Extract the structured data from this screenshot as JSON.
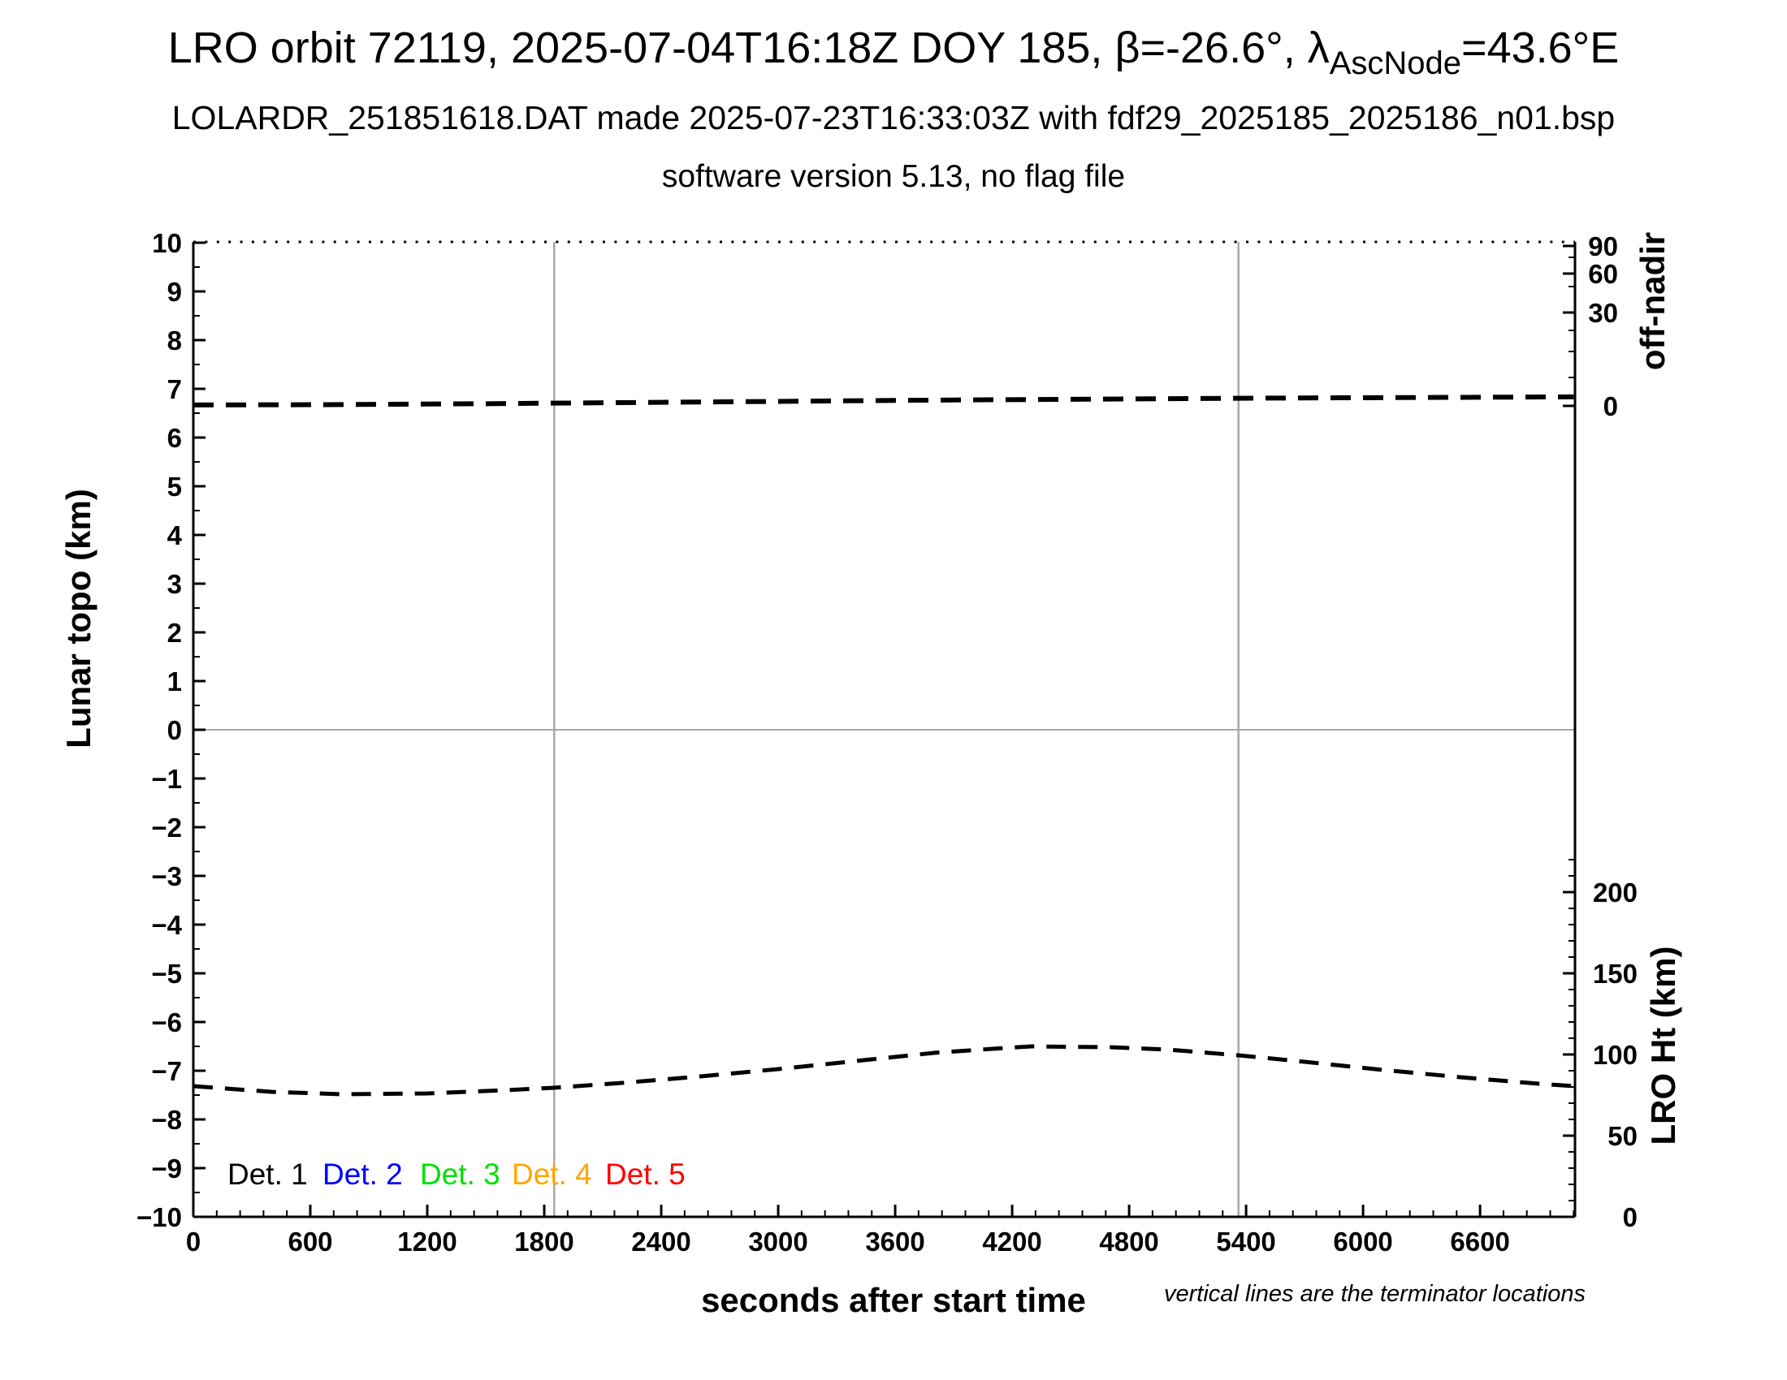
{
  "header": {
    "title_part1": "LRO orbit 72119, 2025-07-04T16:18Z DOY 185, β=-26.6°, λ",
    "title_subscript": "AscNode",
    "title_part2": "=43.6°E",
    "subtitle": "LOLARDR_251851618.DAT made 2025-07-23T16:33:03Z with fdf29_2025185_2025186_n01.bsp",
    "subtitle2": "software version 5.13, no flag file"
  },
  "axes": {
    "left": {
      "label": "Lunar topo (km)",
      "tick_labels": [
        "10",
        "9",
        "8",
        "7",
        "6",
        "5",
        "4",
        "3",
        "2",
        "1",
        "0",
        "−1",
        "−2",
        "−3",
        "−4",
        "−5",
        "−6",
        "−7",
        "−8",
        "−9",
        "−10"
      ],
      "tick_values": [
        10,
        9,
        8,
        7,
        6,
        5,
        4,
        3,
        2,
        1,
        0,
        -1,
        -2,
        -3,
        -4,
        -5,
        -6,
        -7,
        -8,
        -9,
        -10
      ],
      "range": [
        -10,
        10
      ],
      "minor_step": 0.5
    },
    "bottom": {
      "label": "seconds after start time",
      "tick_labels": [
        "0",
        "600",
        "1200",
        "1800",
        "2400",
        "3000",
        "3600",
        "4200",
        "4800",
        "5400",
        "6000",
        "6600"
      ],
      "tick_values": [
        0,
        600,
        1200,
        1800,
        2400,
        3000,
        3600,
        4200,
        4800,
        5400,
        6000,
        6600
      ],
      "range": [
        0,
        7087
      ],
      "minor_step": 120
    },
    "right_top": {
      "label": "off-nadir",
      "tick_labels": [
        "90",
        "60",
        "30",
        "0"
      ],
      "tick_values": [
        90,
        60,
        30,
        0
      ]
    },
    "right_bottom": {
      "label": "LRO Ht (km)",
      "tick_labels": [
        "200",
        "150",
        "100",
        "50",
        "0"
      ],
      "tick_values": [
        200,
        150,
        100,
        50,
        0
      ]
    }
  },
  "legend": {
    "items": [
      {
        "label": "Det. 1",
        "color": "#000000"
      },
      {
        "label": "Det. 2",
        "color": "#0000ff"
      },
      {
        "label": "Det. 3",
        "color": "#00e000"
      },
      {
        "label": "Det. 4",
        "color": "#ffa500"
      },
      {
        "label": "Det. 5",
        "color": "#ff0000"
      }
    ]
  },
  "note": "vertical lines are the terminator locations",
  "colors": {
    "curves": "#000000",
    "grid": "#a8a8a8",
    "axis": "#000000"
  },
  "chart_data": {
    "type": "line",
    "title": "LRO orbit 72119, 2025-07-04T16:18Z DOY 185, β=-26.6°, λAscNode=43.6°E",
    "xlabel": "seconds after start time",
    "ylabel_left": "Lunar topo (km)",
    "ylabel_right_top": "off-nadir",
    "ylabel_right_bottom": "LRO Ht (km)",
    "xlim": [
      0,
      7087
    ],
    "ylim_left": [
      -10,
      10
    ],
    "grid": false,
    "legend_position": "bottom-left inside",
    "terminator_lines_x_seconds": [
      1851,
      5361
    ],
    "zero_topo_gridline": 0,
    "series": [
      {
        "name": "off-nadir angle (deg), Det. 1-5 overplotted",
        "axis": "right_top",
        "style": "dashed",
        "color": "#000000",
        "x": [
          0,
          700,
          1500,
          2300,
          3100,
          3900,
          4700,
          5500,
          6300,
          7080
        ],
        "y": [
          0.3,
          0.4,
          0.7,
          1.1,
          1.5,
          1.9,
          2.2,
          2.5,
          2.7,
          2.9
        ]
      },
      {
        "name": "LRO height (km)",
        "axis": "right_bottom",
        "style": "dashed",
        "color": "#000000",
        "x": [
          0,
          400,
          770,
          1200,
          1600,
          1851,
          2200,
          2600,
          3000,
          3400,
          3800,
          4100,
          4300,
          4700,
          5000,
          5361,
          5700,
          6100,
          6500,
          6900,
          7080
        ],
        "y": [
          80.5,
          77,
          75.5,
          76,
          78,
          79.5,
          82.5,
          86.5,
          91,
          96,
          101,
          103.5,
          105,
          104.5,
          103,
          99.5,
          95.5,
          90.5,
          86,
          82,
          80.5
        ]
      }
    ]
  }
}
